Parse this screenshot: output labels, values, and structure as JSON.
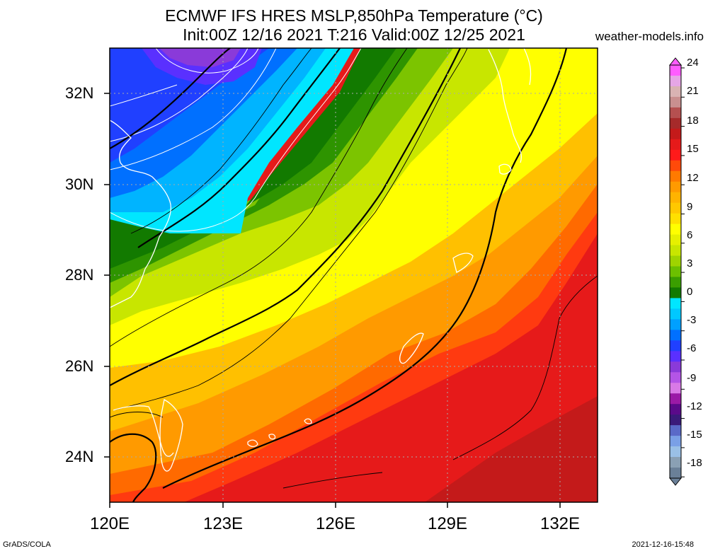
{
  "header": {
    "title_line1": "ECMWF IFS HRES MSLP,850hPa Temperature (°C)",
    "title_line2": "Init:00Z 12/16 2021 T:216 Valid:00Z 12/25 2021",
    "site": "weather-models.info"
  },
  "footer": {
    "left": "GrADS/COLA",
    "right": "2021-12-16-15:48"
  },
  "map": {
    "lat_labels": [
      "32N",
      "30N",
      "28N",
      "26N",
      "24N"
    ],
    "lon_labels": [
      "120E",
      "123E",
      "126E",
      "129E",
      "132E"
    ]
  },
  "colorbar": {
    "labels": [
      "24",
      "21",
      "18",
      "15",
      "12",
      "9",
      "6",
      "3",
      "0",
      "-3",
      "-6",
      "-9",
      "-12",
      "-15",
      "-18"
    ],
    "colors": [
      "#ff5cff",
      "#e6a6e6",
      "#d9b3b3",
      "#c98f8f",
      "#b55050",
      "#a62a2a",
      "#c41a1a",
      "#e61a1a",
      "#ff1a1a",
      "#ff4a0a",
      "#ff7a00",
      "#ff9a00",
      "#ffb300",
      "#ffc800",
      "#ffe000",
      "#ffff00",
      "#e6f000",
      "#c8e600",
      "#9fd400",
      "#6cc000",
      "#3a9e00",
      "#127a00",
      "#00e6ff",
      "#00c8ff",
      "#00a0ff",
      "#0070ff",
      "#2040ff",
      "#5a30ff",
      "#8a3ad9",
      "#b455e6",
      "#d97ae6",
      "#9a1aa6",
      "#5a0a8a",
      "#3a1a7a",
      "#5a6ac8",
      "#7aa0e6",
      "#9ac0e6",
      "#8aa0b4",
      "#6a8098"
    ]
  }
}
